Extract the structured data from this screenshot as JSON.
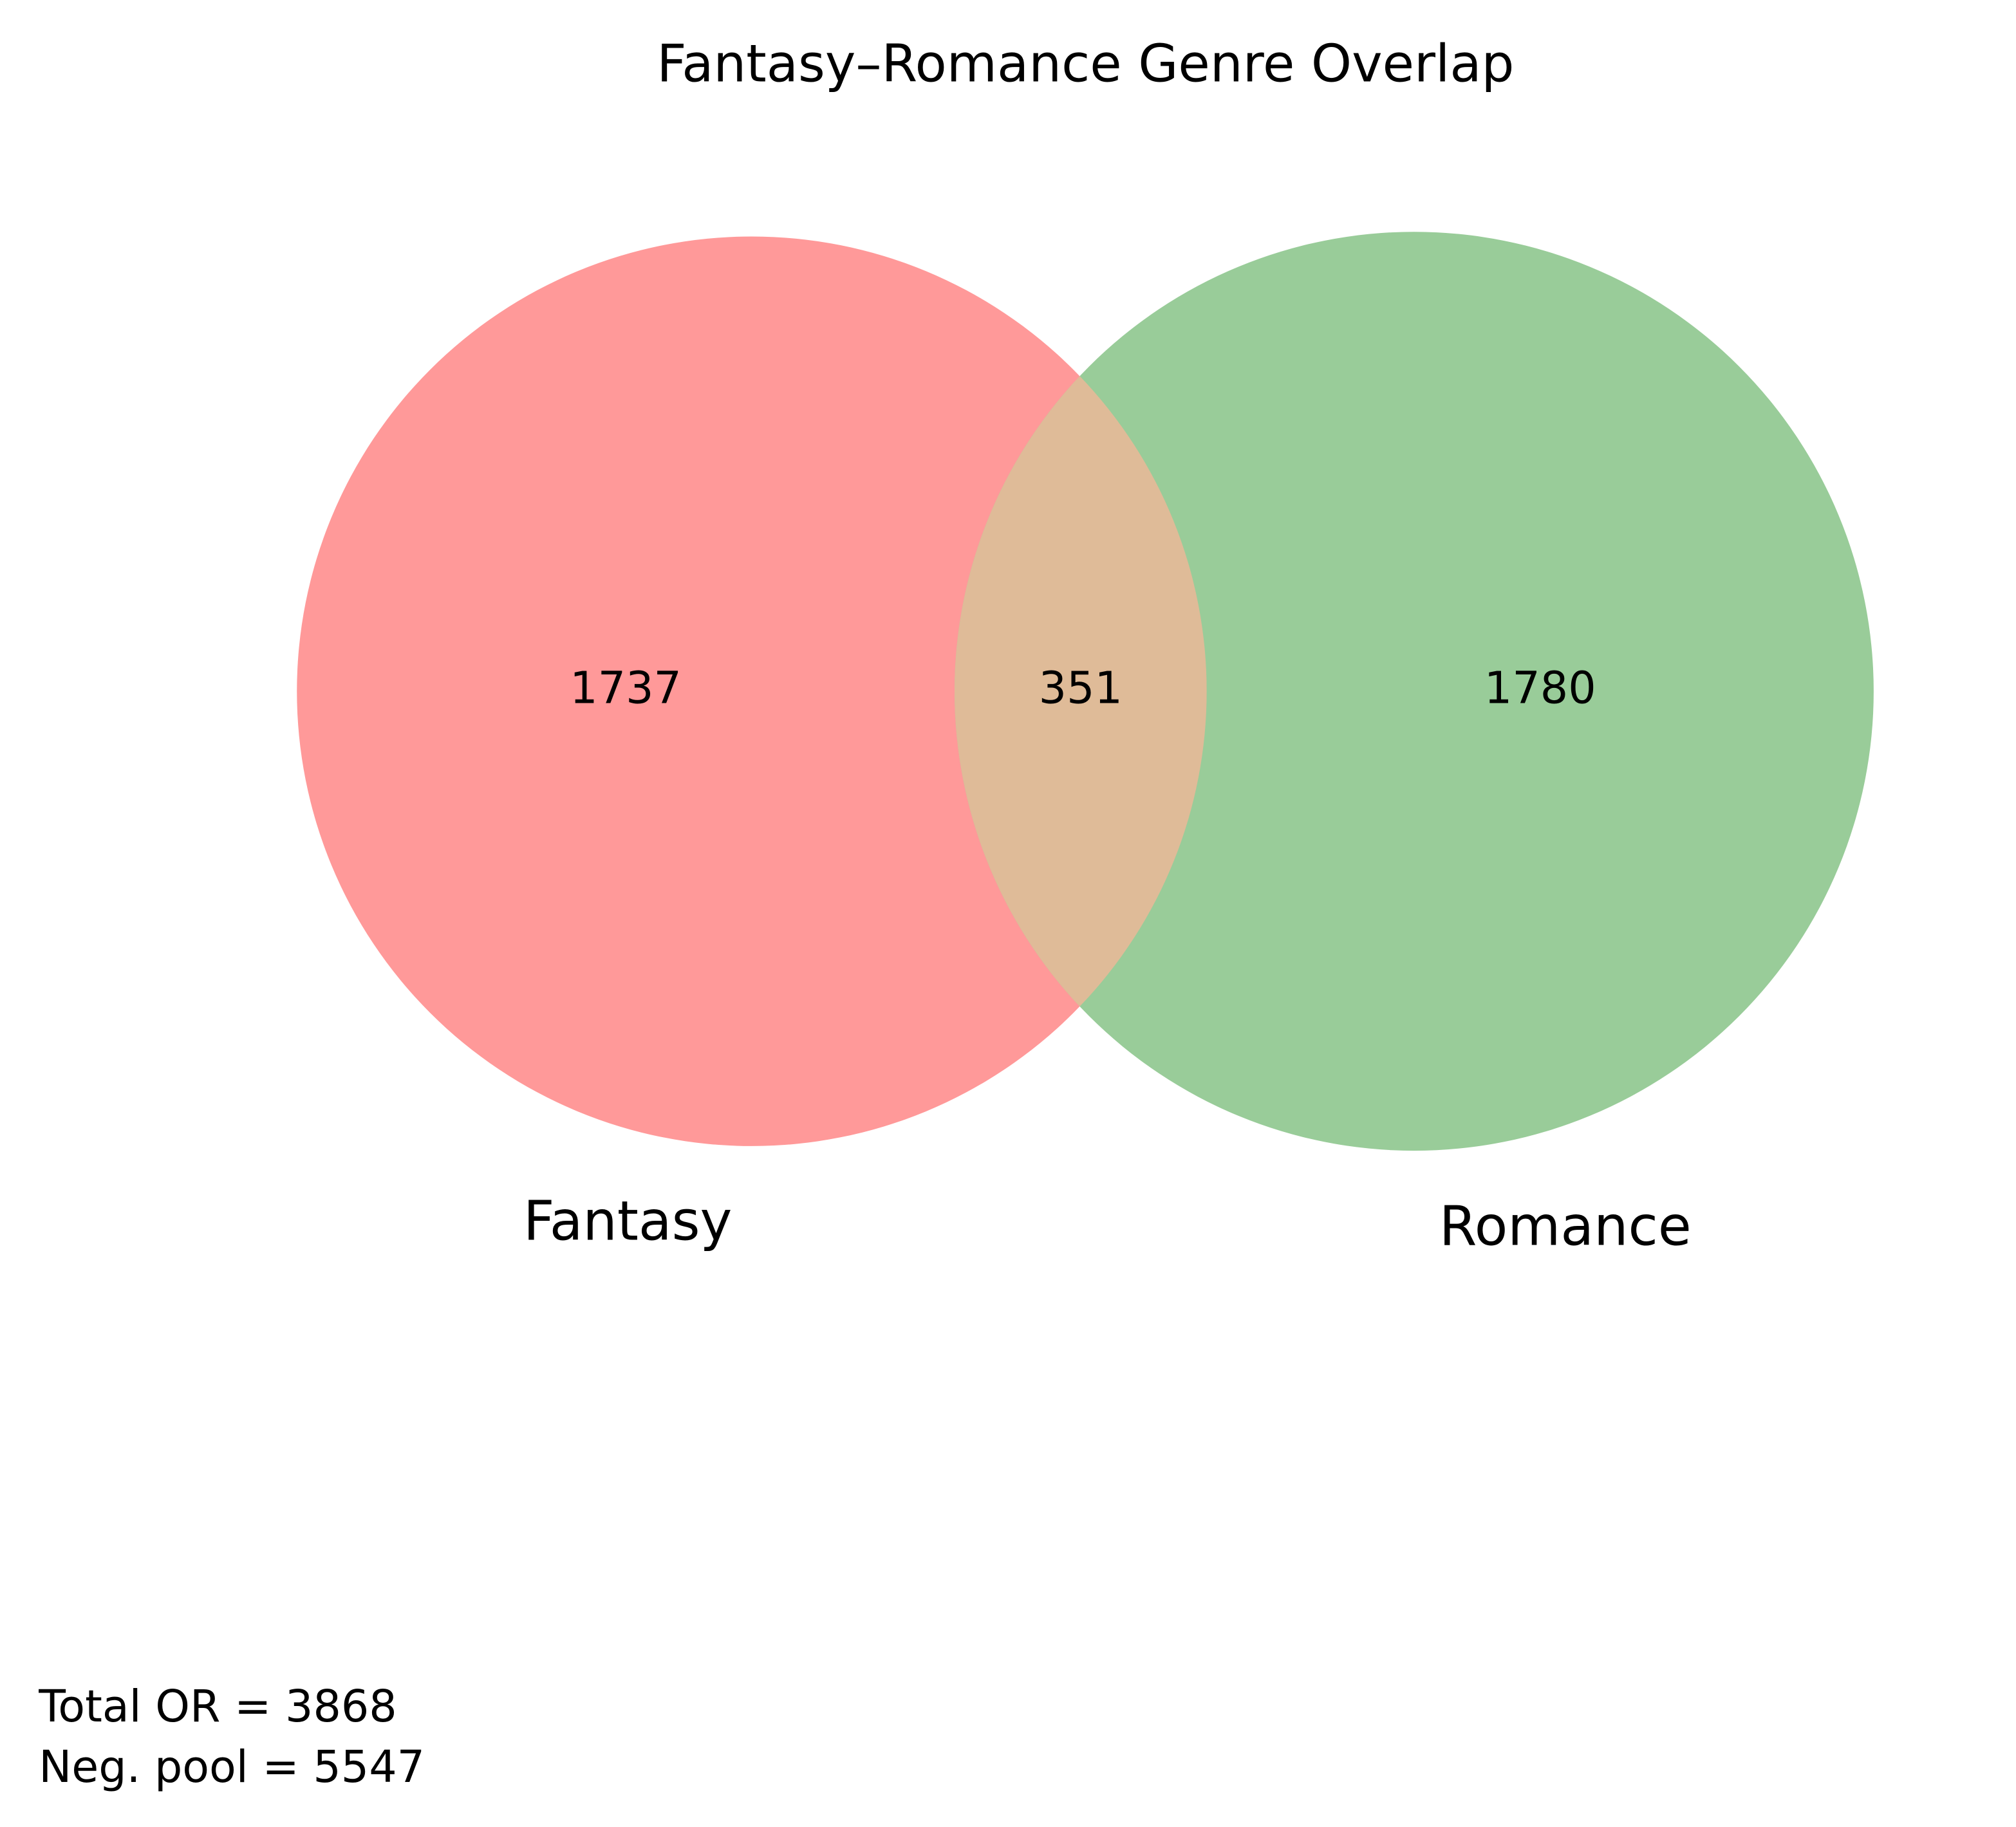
{
  "chart_data": {
    "type": "venn",
    "title": "Fantasy–Romance Genre Overlap",
    "sets": [
      {
        "name": "Fantasy",
        "color": "#ff9999"
      },
      {
        "name": "Romance",
        "color": "#99cc99"
      }
    ],
    "overlap_color": "#dfbb98",
    "values": [
      1737,
      351,
      1780
    ],
    "annotations": [
      "Total OR = 3868",
      "Neg. pool = 5547"
    ]
  }
}
